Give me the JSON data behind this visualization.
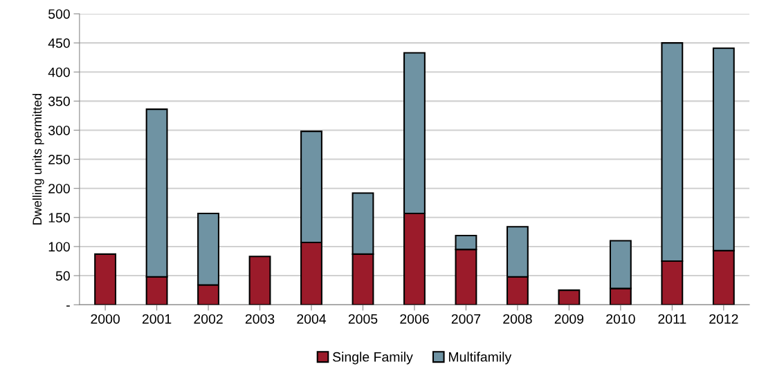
{
  "chart_data": {
    "type": "bar",
    "stacked": true,
    "ylabel": "Dwelling units permitted",
    "categories": [
      "2000",
      "2001",
      "2002",
      "2003",
      "2004",
      "2005",
      "2006",
      "2007",
      "2008",
      "2009",
      "2010",
      "2011",
      "2012"
    ],
    "series": [
      {
        "name": "Single Family",
        "color": "#9b1b2a",
        "values": [
          87,
          48,
          34,
          83,
          107,
          87,
          157,
          95,
          48,
          25,
          28,
          75,
          93
        ]
      },
      {
        "name": "Multifamily",
        "color": "#6f93a3",
        "values": [
          null,
          288,
          123,
          null,
          191,
          105,
          276,
          24,
          86,
          null,
          82,
          375,
          348
        ]
      }
    ],
    "ylim": [
      0,
      500
    ],
    "yticks": [
      {
        "value": 0,
        "label": "-"
      },
      50,
      100,
      150,
      200,
      250,
      300,
      350,
      400,
      450,
      500
    ],
    "grid": "y",
    "legend": "bottom"
  }
}
